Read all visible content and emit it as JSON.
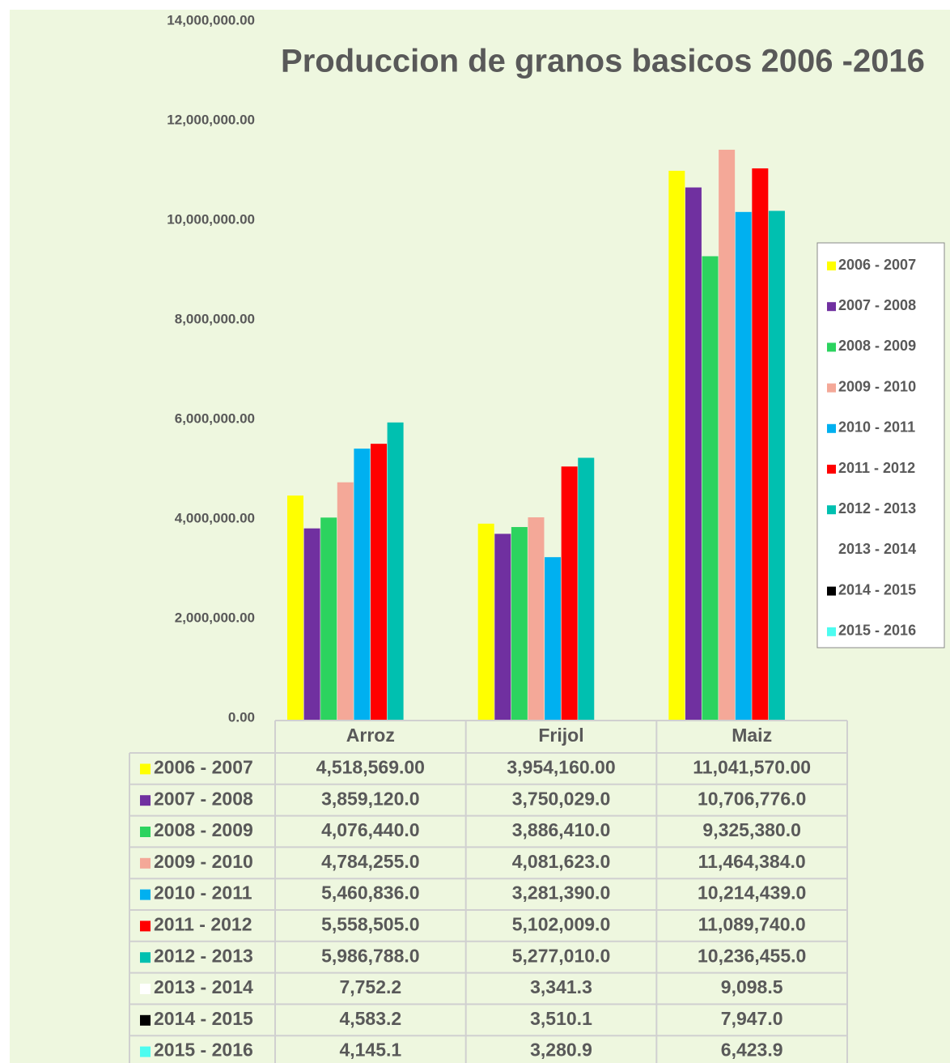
{
  "chart_data": {
    "type": "bar",
    "title": "Produccion de granos basicos 2006 -2016",
    "categories": [
      "Arroz",
      "Frijol",
      "Maiz"
    ],
    "ylim": [
      0,
      14000000
    ],
    "yticks": [
      {
        "value": 0,
        "label": "0.00"
      },
      {
        "value": 2000000,
        "label": "2,000,000.00"
      },
      {
        "value": 4000000,
        "label": "4,000,000.00"
      },
      {
        "value": 6000000,
        "label": "6,000,000.00"
      },
      {
        "value": 8000000,
        "label": "8,000,000.00"
      },
      {
        "value": 10000000,
        "label": "10,000,000.00"
      },
      {
        "value": 12000000,
        "label": "12,000,000.00"
      },
      {
        "value": 14000000,
        "label": "14,000,000.00"
      }
    ],
    "legend": "right",
    "series": [
      {
        "name": "2006 - 2007",
        "color": "#ffff00",
        "values": [
          4518569,
          3954160,
          11041570
        ],
        "value_labels": [
          "4,518,569.00",
          "3,954,160.00",
          "11,041,570.00"
        ]
      },
      {
        "name": "2007 - 2008",
        "color": "#7030a0",
        "values": [
          3859120,
          3750029,
          10706776
        ],
        "value_labels": [
          "3,859,120.0",
          "3,750,029.0",
          "10,706,776.0"
        ]
      },
      {
        "name": "2008 - 2009",
        "color": "#2cd35f",
        "values": [
          4076440,
          3886410,
          9325380
        ],
        "value_labels": [
          "4,076,440.0",
          "3,886,410.0",
          "9,325,380.0"
        ]
      },
      {
        "name": "2009 - 2010",
        "color": "#f4a898",
        "values": [
          4784255,
          4081623,
          11464384
        ],
        "value_labels": [
          "4,784,255.0",
          "4,081,623.0",
          "11,464,384.0"
        ]
      },
      {
        "name": "2010 - 2011",
        "color": "#00b0f0",
        "values": [
          5460836,
          3281390,
          10214439
        ],
        "value_labels": [
          "5,460,836.0",
          "3,281,390.0",
          "10,214,439.0"
        ]
      },
      {
        "name": "2011 - 2012",
        "color": "#ff0000",
        "values": [
          5558505,
          5102009,
          11089740
        ],
        "value_labels": [
          "5,558,505.0",
          "5,102,009.0",
          "11,089,740.0"
        ]
      },
      {
        "name": "2012 - 2013",
        "color": "#00c0b0",
        "values": [
          5986788,
          5277010,
          10236455
        ],
        "value_labels": [
          "5,986,788.0",
          "5,277,010.0",
          "10,236,455.0"
        ]
      },
      {
        "name": "2013 - 2014",
        "color": "#ffffff",
        "values": [
          7752.2,
          3341.3,
          9098.5
        ],
        "value_labels": [
          "7,752.2",
          "3,341.3",
          "9,098.5"
        ]
      },
      {
        "name": "2014 - 2015",
        "color": "#000000",
        "values": [
          4583.2,
          3510.1,
          7947.0
        ],
        "value_labels": [
          "4,583.2",
          "3,510.1",
          "7,947.0"
        ]
      },
      {
        "name": "2015 - 2016",
        "color": "#4dfcf0",
        "values": [
          4145.1,
          3280.9,
          6423.9
        ],
        "value_labels": [
          "4,145.1",
          "3,280.9",
          "6,423.9"
        ]
      }
    ]
  }
}
